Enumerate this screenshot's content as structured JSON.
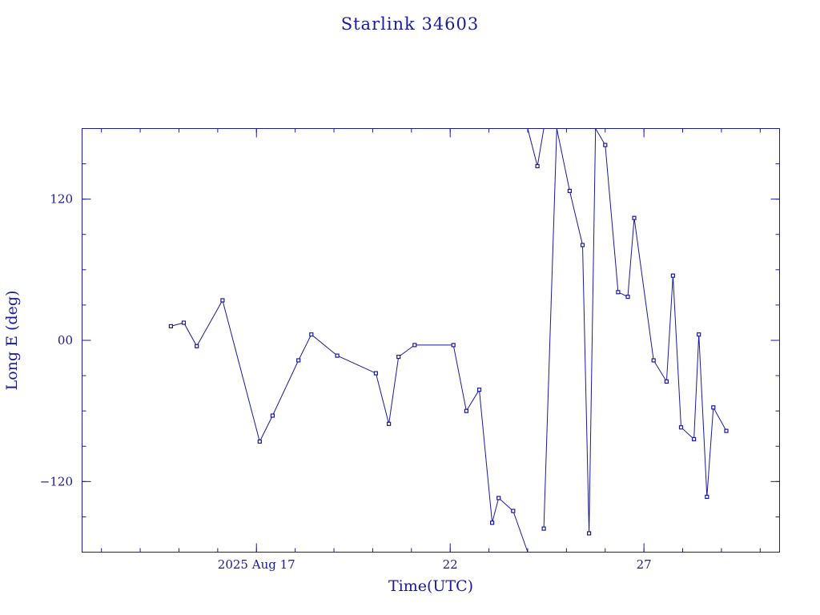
{
  "chart_data": {
    "type": "line",
    "title": "Starlink 34603",
    "xlabel": "Time(UTC)",
    "ylabel": "Long E (deg)",
    "color": "#1a1a9c",
    "xlim": [
      "2025-08-12T12:00:00Z",
      "2025-08-30T12:00:00Z"
    ],
    "ylim": [
      -180,
      180
    ],
    "x_major_ticks": [
      {
        "date": "2025-08-17",
        "label": "2025 Aug 17"
      },
      {
        "date": "2025-08-22",
        "label": "22"
      },
      {
        "date": "2025-08-27",
        "label": "27"
      }
    ],
    "y_major_ticks": [
      {
        "value": 120,
        "label": "120"
      },
      {
        "value": 0,
        "label": "00"
      },
      {
        "value": -120,
        "label": "−120"
      }
    ],
    "series": [
      {
        "points": [
          [
            "2025-08-14T19:00:00Z",
            12
          ],
          [
            "2025-08-15T03:00:00Z",
            15
          ],
          [
            "2025-08-15T11:00:00Z",
            -5
          ],
          [
            "2025-08-16T03:00:00Z",
            34
          ],
          [
            "2025-08-17T02:00:00Z",
            -86
          ],
          [
            "2025-08-17T10:00:00Z",
            -64
          ],
          [
            "2025-08-18T02:00:00Z",
            -17
          ],
          [
            "2025-08-18T10:00:00Z",
            5
          ],
          [
            "2025-08-19T02:00:00Z",
            -13
          ],
          [
            "2025-08-20T02:00:00Z",
            -28
          ],
          [
            "2025-08-20T10:00:00Z",
            -71
          ],
          [
            "2025-08-20T16:00:00Z",
            -14
          ],
          [
            "2025-08-21T02:00:00Z",
            -4
          ],
          [
            "2025-08-22T02:00:00Z",
            -4
          ],
          [
            "2025-08-22T10:00:00Z",
            -60
          ],
          [
            "2025-08-22T18:00:00Z",
            -42
          ],
          [
            "2025-08-23T02:00:00Z",
            -155
          ],
          [
            "2025-08-23T06:00:00Z",
            -134
          ],
          [
            "2025-08-23T15:00:00Z",
            -145
          ],
          [
            "2025-08-24T00:00:00Z",
            -180
          ],
          null,
          [
            "2025-08-24T00:00:00Z",
            180
          ],
          [
            "2025-08-24T06:00:00Z",
            148
          ],
          [
            "2025-08-24T10:00:00Z",
            180
          ],
          null,
          [
            "2025-08-24T10:00:00Z",
            -160
          ],
          [
            "2025-08-24T18:00:00Z",
            180
          ],
          null,
          [
            "2025-08-24T18:00:00Z",
            180
          ],
          [
            "2025-08-25T02:00:00Z",
            127
          ],
          [
            "2025-08-25T10:00:00Z",
            81
          ],
          [
            "2025-08-25T14:00:00Z",
            -164
          ],
          [
            "2025-08-25T18:00:00Z",
            180
          ],
          null,
          [
            "2025-08-25T18:00:00Z",
            180
          ],
          [
            "2025-08-26T00:00:00Z",
            166
          ],
          [
            "2025-08-26T08:00:00Z",
            41
          ],
          [
            "2025-08-26T14:00:00Z",
            37
          ],
          [
            "2025-08-26T18:00:00Z",
            104
          ],
          [
            "2025-08-27T06:00:00Z",
            -17
          ],
          [
            "2025-08-27T14:00:00Z",
            -35
          ],
          [
            "2025-08-27T18:00:00Z",
            55
          ],
          [
            "2025-08-27T23:00:00Z",
            -74
          ],
          [
            "2025-08-28T07:00:00Z",
            -84
          ],
          [
            "2025-08-28T10:00:00Z",
            5
          ],
          [
            "2025-08-28T15:00:00Z",
            -133
          ],
          [
            "2025-08-28T19:00:00Z",
            -57
          ],
          [
            "2025-08-29T03:00:00Z",
            -77
          ]
        ]
      }
    ]
  }
}
